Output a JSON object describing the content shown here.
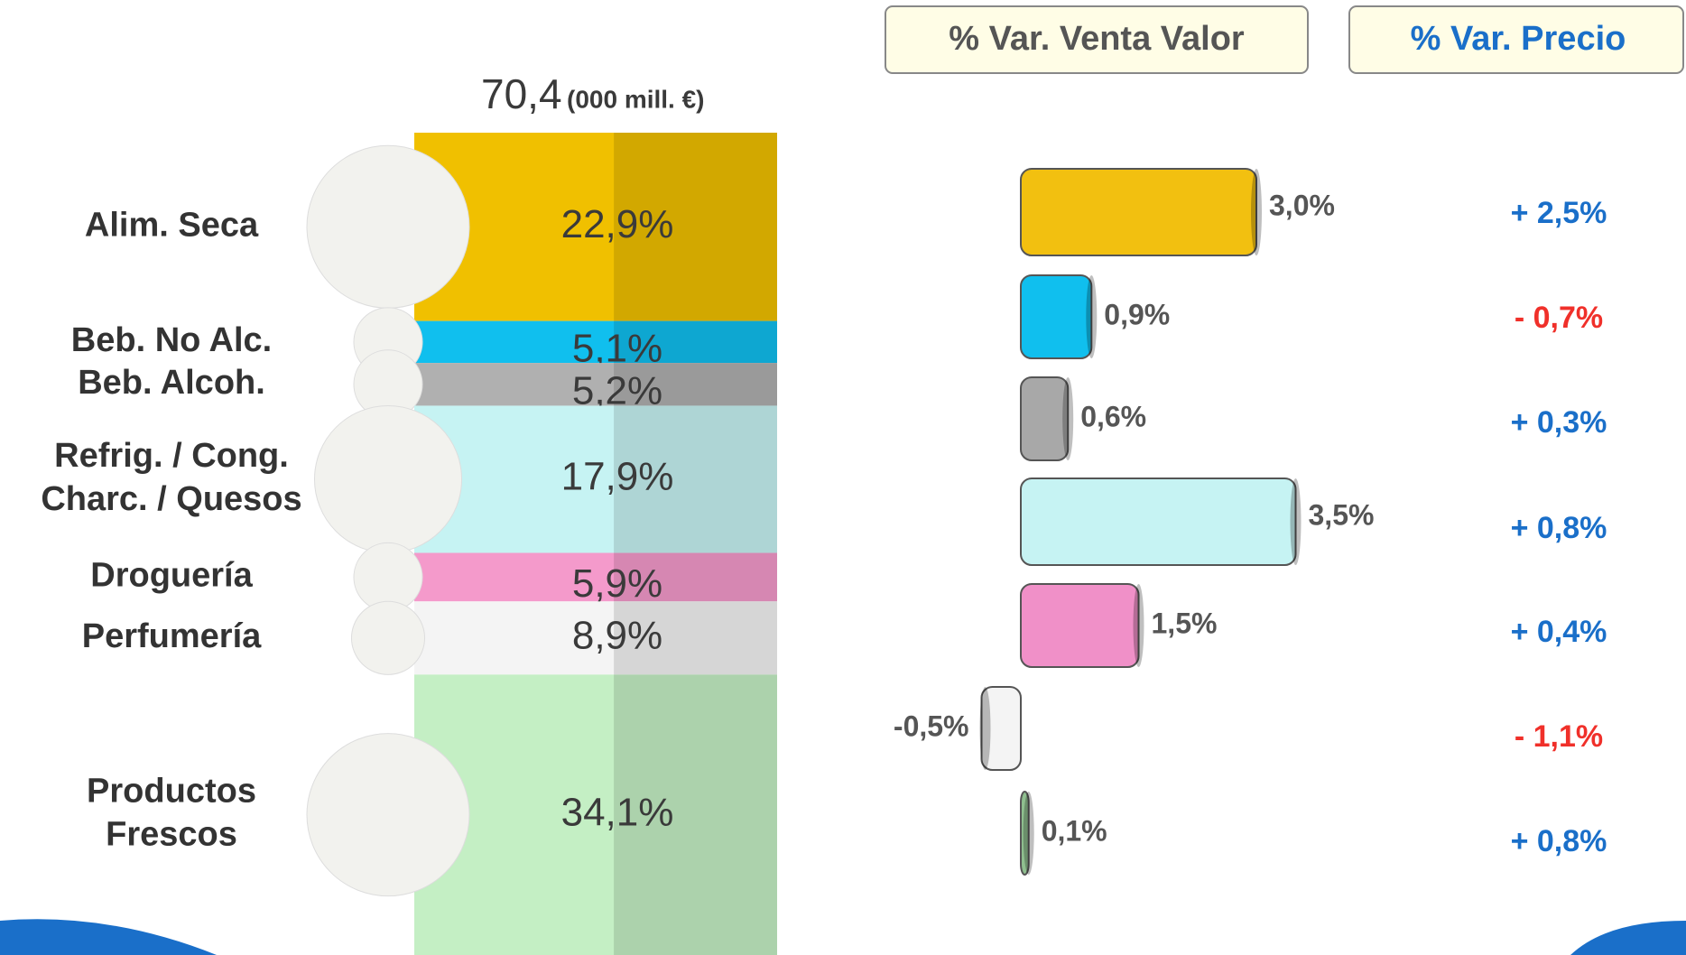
{
  "chart_data": [
    {
      "type": "stacked_column",
      "title": "70,4",
      "subtitle": "(000 mill. €)",
      "categories": [
        "Alim. Seca",
        "Beb. No Alc.",
        "Beb. Alcoh.",
        "Refrig. / Cong.\nCharc. / Quesos",
        "Droguería",
        "Perfumería",
        "Productos\nFrescos"
      ],
      "values": [
        22.9,
        5.1,
        5.2,
        17.9,
        5.9,
        8.9,
        34.1
      ],
      "value_labels": [
        "22,9%",
        "5,1%",
        "5,2%",
        "17,9%",
        "5,9%",
        "8,9%",
        "34,1%"
      ],
      "colors": [
        "#f0c000",
        "#10bfee",
        "#b0b0b0",
        "#c6f3f3",
        "#f49acb",
        "#f4f4f4",
        "#c4efc4"
      ]
    },
    {
      "type": "bar",
      "title": "% Var. Venta Valor",
      "values": [
        3.0,
        0.9,
        0.6,
        3.5,
        1.5,
        -0.5,
        0.1
      ],
      "value_labels": [
        "3,0%",
        "0,9%",
        "0,6%",
        "3,5%",
        "1,5%",
        "-0,5%",
        "0,1%"
      ],
      "colors": [
        "#f2c010",
        "#10bfee",
        "#a8a8a8",
        "#c6f3f3",
        "#f090c8",
        "#f4f4f4",
        "#8fbf8f"
      ]
    },
    {
      "type": "text_column",
      "title": "% Var. Precio",
      "values": [
        2.5,
        -0.7,
        0.3,
        0.8,
        0.4,
        -1.1,
        0.8
      ],
      "value_labels": [
        "+ 2,5%",
        "- 0,7%",
        "+ 0,3%",
        "+ 0,8%",
        "+ 0,4%",
        "- 1,1%",
        "+ 0,8%"
      ],
      "positive_color": "#1a6fc9",
      "negative_color": "#f0302a"
    }
  ]
}
